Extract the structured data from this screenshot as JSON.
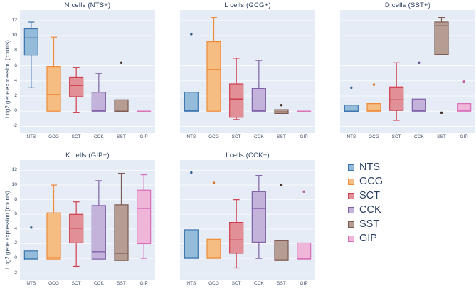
{
  "figure": {
    "background": "#ffffff",
    "panel_background": "#e5ecf6",
    "grid_color": "#f7f9fc",
    "text_color": "#2a3f5f"
  },
  "palette": {
    "NTS": {
      "edge": "#3b75af",
      "fill": "#94bcda",
      "dot": "#2e5f8f"
    },
    "GCG": {
      "edge": "#ef8b38",
      "fill": "#f6bd82",
      "dot": "#d9752a"
    },
    "SCT": {
      "edge": "#cf3e4e",
      "fill": "#e19097",
      "dot": "#b03040"
    },
    "CCK": {
      "edge": "#7f60a7",
      "fill": "#c3b2da",
      "dot": "#6a4f8f"
    },
    "SST": {
      "edge": "#7d5b50",
      "fill": "#b69d93",
      "dot": "#443229"
    },
    "GIP": {
      "edge": "#d96fb8",
      "fill": "#efb6da",
      "dot": "#c05fa0"
    }
  },
  "legend": {
    "items": [
      "NTS",
      "GCG",
      "SCT",
      "CCK",
      "SST",
      "GIP"
    ]
  },
  "chart_data": [
    {
      "type": "box",
      "title": "N cells (NTS+)",
      "ylabel": "Log2 gene expression (counts)",
      "categories": [
        "NTS",
        "GCG",
        "SCT",
        "CCK",
        "SST",
        "GIP"
      ],
      "yticks": [
        -2,
        0,
        2,
        4,
        6,
        8,
        10,
        12
      ],
      "ylim": [
        -2.9,
        13.4
      ],
      "boxes": [
        {
          "c": "NTS",
          "lo": 3.1,
          "q1": 7.4,
          "med": 9.7,
          "q3": 10.9,
          "hi": 11.8,
          "out": []
        },
        {
          "c": "GCG",
          "lo": 0.0,
          "q1": 0.0,
          "med": 2.2,
          "q3": 5.9,
          "hi": 9.8,
          "out": []
        },
        {
          "c": "SCT",
          "lo": -0.2,
          "q1": 1.9,
          "med": 3.4,
          "q3": 4.5,
          "hi": 5.8,
          "out": []
        },
        {
          "c": "CCK",
          "lo": 0.0,
          "q1": 0.0,
          "med": 0.1,
          "q3": 2.5,
          "hi": 5.0,
          "out": []
        },
        {
          "c": "SST",
          "lo": -0.1,
          "q1": -0.1,
          "med": 0.0,
          "q3": 1.5,
          "hi": 1.5,
          "out": [
            6.4
          ]
        },
        {
          "c": "GIP",
          "lo": 0.0,
          "q1": 0.0,
          "med": 0.0,
          "q3": 0.0,
          "hi": 0.0,
          "out": []
        }
      ]
    },
    {
      "type": "box",
      "title": "L cells (GCG+)",
      "categories": [
        "NTS",
        "GCG",
        "SCT",
        "CCK",
        "SST",
        "GIP"
      ],
      "yticks": [
        -2,
        0,
        2,
        4,
        6,
        8,
        10,
        12
      ],
      "ylim": [
        -2.9,
        13.4
      ],
      "boxes": [
        {
          "c": "NTS",
          "lo": 0.0,
          "q1": 0.0,
          "med": 0.1,
          "q3": 2.5,
          "hi": 2.5,
          "out": [
            10.2
          ]
        },
        {
          "c": "GCG",
          "lo": 0.0,
          "q1": 0.0,
          "med": 5.5,
          "q3": 9.2,
          "hi": 12.4,
          "out": []
        },
        {
          "c": "SCT",
          "lo": -1.1,
          "q1": -0.8,
          "med": 1.6,
          "q3": 3.6,
          "hi": 7.0,
          "out": []
        },
        {
          "c": "CCK",
          "lo": 0.0,
          "q1": 0.0,
          "med": 0.1,
          "q3": 3.0,
          "hi": 6.7,
          "out": []
        },
        {
          "c": "SST",
          "lo": -0.3,
          "q1": -0.3,
          "med": -0.1,
          "q3": 0.2,
          "hi": 0.2,
          "out": [
            0.8
          ]
        },
        {
          "c": "GIP",
          "lo": 0.0,
          "q1": 0.0,
          "med": 0.0,
          "q3": 0.0,
          "hi": 0.0,
          "out": []
        }
      ]
    },
    {
      "type": "box",
      "title": "D cells (SST+)",
      "categories": [
        "NTS",
        "GCG",
        "SCT",
        "CCK",
        "SST",
        "GIP"
      ],
      "yticks": [
        -2,
        0,
        2,
        4,
        6,
        8,
        10,
        12
      ],
      "ylim": [
        -2.9,
        13.4
      ],
      "boxes": [
        {
          "c": "NTS",
          "lo": -0.1,
          "q1": -0.1,
          "med": 0.0,
          "q3": 0.8,
          "hi": 0.8,
          "out": [
            3.1
          ]
        },
        {
          "c": "GCG",
          "lo": 0.0,
          "q1": 0.0,
          "med": 0.1,
          "q3": 1.0,
          "hi": 1.0,
          "out": [
            3.5
          ]
        },
        {
          "c": "SCT",
          "lo": -1.2,
          "q1": 0.1,
          "med": 1.5,
          "q3": 3.2,
          "hi": 6.4,
          "out": []
        },
        {
          "c": "CCK",
          "lo": 0.0,
          "q1": 0.0,
          "med": 0.1,
          "q3": 1.6,
          "hi": 1.6,
          "out": [
            6.4
          ]
        },
        {
          "c": "SST",
          "lo": 7.5,
          "q1": 7.5,
          "med": 11.3,
          "q3": 11.8,
          "hi": 12.4,
          "out": [
            -0.2
          ]
        },
        {
          "c": "GIP",
          "lo": 0.0,
          "q1": 0.0,
          "med": 0.1,
          "q3": 1.0,
          "hi": 1.0,
          "out": [
            3.9
          ]
        }
      ]
    },
    {
      "type": "box",
      "title": "K cells (GIP+)",
      "ylabel": "Log2 gene expression (counts)",
      "categories": [
        "NTS",
        "GCG",
        "SCT",
        "CCK",
        "SST",
        "GIP"
      ],
      "yticks": [
        -2,
        0,
        2,
        4,
        6,
        8,
        10,
        12
      ],
      "ylim": [
        -2.9,
        13.4
      ],
      "boxes": [
        {
          "c": "NTS",
          "lo": -0.2,
          "q1": -0.2,
          "med": 0.0,
          "q3": 1.0,
          "hi": 1.0,
          "out": [
            4.2
          ]
        },
        {
          "c": "GCG",
          "lo": -0.1,
          "q1": -0.1,
          "med": 0.1,
          "q3": 6.2,
          "hi": 10.0,
          "out": []
        },
        {
          "c": "SCT",
          "lo": -1.1,
          "q1": 2.1,
          "med": 4.1,
          "q3": 6.0,
          "hi": 7.7,
          "out": []
        },
        {
          "c": "CCK",
          "lo": -0.1,
          "q1": -0.1,
          "med": 0.9,
          "q3": 7.2,
          "hi": 10.6,
          "out": []
        },
        {
          "c": "SST",
          "lo": -0.3,
          "q1": -0.3,
          "med": 0.7,
          "q3": 7.3,
          "hi": 11.6,
          "out": []
        },
        {
          "c": "GIP",
          "lo": 0.0,
          "q1": 2.0,
          "med": 6.8,
          "q3": 9.3,
          "hi": 11.4,
          "out": []
        }
      ]
    },
    {
      "type": "box",
      "title": "I cells (CCK+)",
      "categories": [
        "NTS",
        "GCG",
        "SCT",
        "CCK",
        "SST",
        "GIP"
      ],
      "yticks": [
        -2,
        0,
        2,
        4,
        6,
        8,
        10,
        12
      ],
      "ylim": [
        -2.9,
        13.4
      ],
      "boxes": [
        {
          "c": "NTS",
          "lo": 0.0,
          "q1": 0.0,
          "med": 0.1,
          "q3": 3.9,
          "hi": 3.9,
          "out": [
            11.7
          ]
        },
        {
          "c": "GCG",
          "lo": 0.0,
          "q1": 0.0,
          "med": 0.1,
          "q3": 2.6,
          "hi": 2.6,
          "out": [
            10.3
          ]
        },
        {
          "c": "SCT",
          "lo": -1.3,
          "q1": 0.7,
          "med": 2.5,
          "q3": 4.9,
          "hi": 8.0,
          "out": []
        },
        {
          "c": "CCK",
          "lo": 0.0,
          "q1": 2.2,
          "med": 6.8,
          "q3": 9.1,
          "hi": 11.3,
          "out": []
        },
        {
          "c": "SST",
          "lo": -0.3,
          "q1": -0.3,
          "med": -0.2,
          "q3": 2.4,
          "hi": 2.4,
          "out": [
            10.0
          ]
        },
        {
          "c": "GIP",
          "lo": -0.1,
          "q1": -0.1,
          "med": 0.0,
          "q3": 2.1,
          "hi": 2.1,
          "out": [
            9.1
          ]
        }
      ]
    }
  ]
}
